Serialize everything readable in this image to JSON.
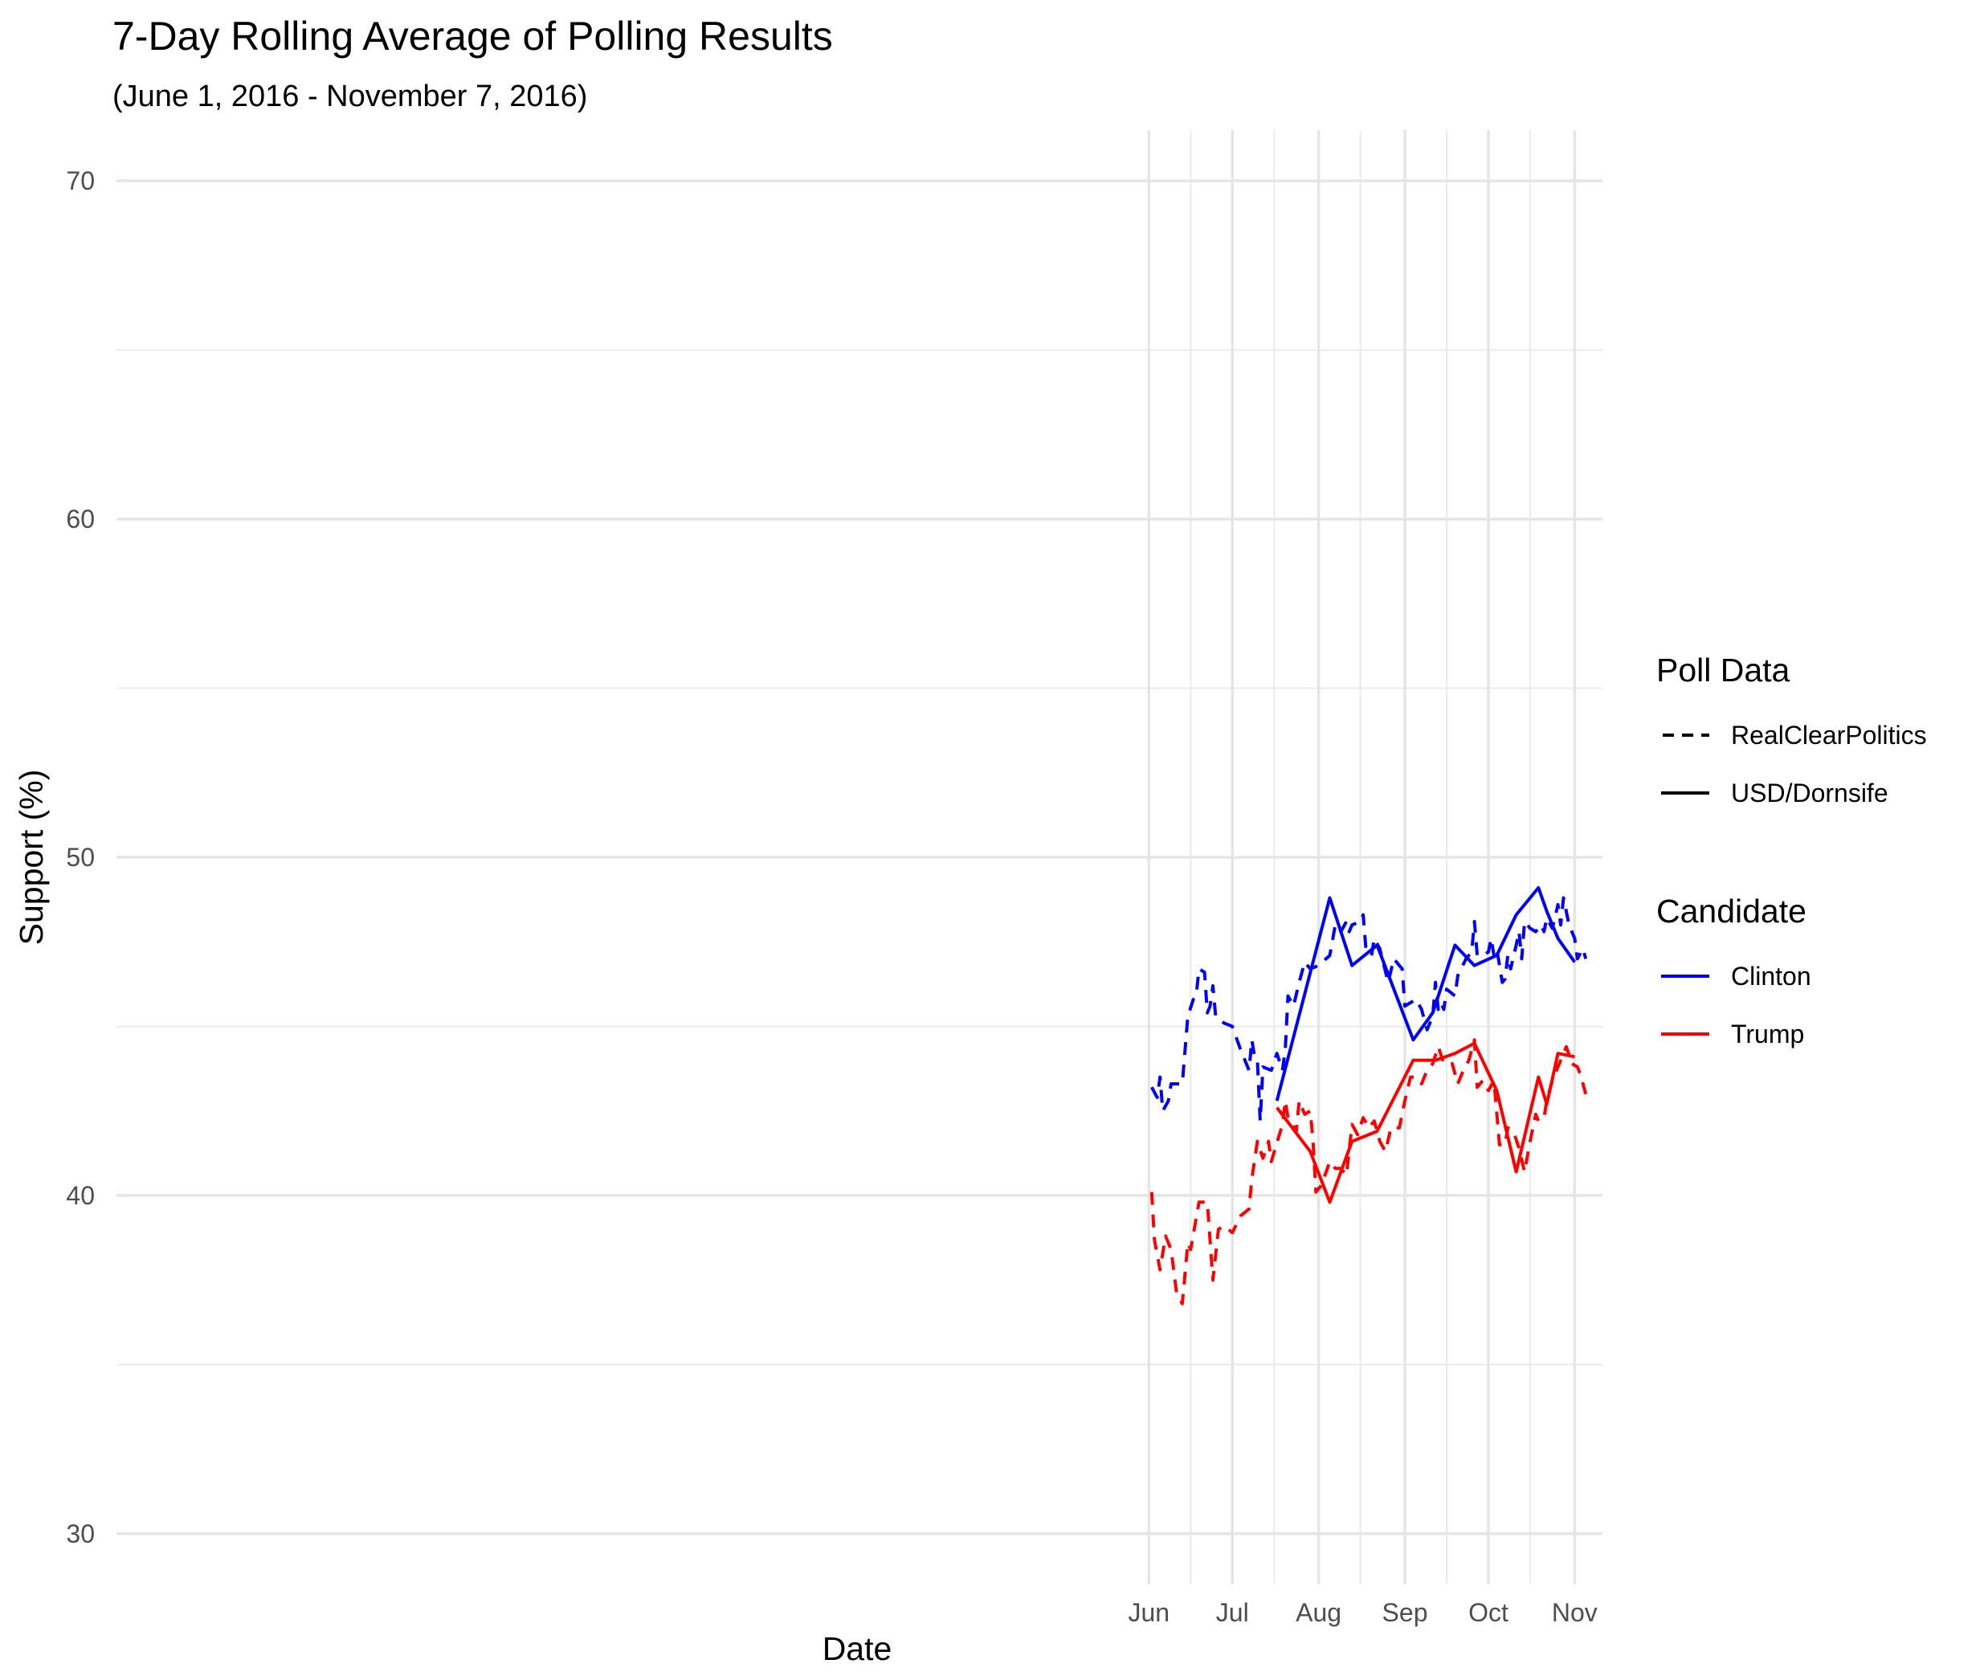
{
  "chart_data": {
    "type": "line",
    "title": "7-Day Rolling Average of Polling Results",
    "subtitle": "(June 1, 2016 - November 7, 2016)",
    "xlabel": "Date",
    "ylabel": "Support (%)",
    "ylim": [
      28.5,
      71.5
    ],
    "y_ticks": [
      30,
      40,
      50,
      60,
      70
    ],
    "x_tick_labels": [
      "Jun",
      "Jul",
      "Aug",
      "Sep",
      "Oct",
      "Nov"
    ],
    "x_tick_dates": [
      "2016-06-01",
      "2016-07-01",
      "2016-08-01",
      "2016-09-01",
      "2016-10-01",
      "2016-11-01"
    ],
    "xlim": [
      "2015-05-27",
      "2016-11-11"
    ],
    "grid": true,
    "legend_position": "right",
    "legends": [
      {
        "title": "Poll Data",
        "items": [
          {
            "label": "RealClearPolitics",
            "linestyle": "dashed"
          },
          {
            "label": "USD/Dornsife",
            "linestyle": "solid"
          }
        ]
      },
      {
        "title": "Candidate",
        "items": [
          {
            "label": "Clinton",
            "color": "#0000ff"
          },
          {
            "label": "Trump",
            "color": "#ff0000"
          }
        ]
      }
    ],
    "series": [
      {
        "candidate": "Clinton",
        "poll": "RealClearPolitics",
        "color": "#0000ff",
        "linestyle": "dashed",
        "points": [
          [
            "2016-06-02",
            43.2
          ],
          [
            "2016-06-04",
            42.9
          ],
          [
            "2016-06-05",
            43.5
          ],
          [
            "2016-06-06",
            42.5
          ],
          [
            "2016-06-08",
            42.8
          ],
          [
            "2016-06-09",
            43.3
          ],
          [
            "2016-06-13",
            43.3
          ],
          [
            "2016-06-15",
            45.3
          ],
          [
            "2016-06-17",
            45.8
          ],
          [
            "2016-06-18",
            45.9
          ],
          [
            "2016-06-19",
            46.7
          ],
          [
            "2016-06-21",
            46.6
          ],
          [
            "2016-06-22",
            45.4
          ],
          [
            "2016-06-23",
            45.6
          ],
          [
            "2016-06-24",
            46.2
          ],
          [
            "2016-06-25",
            45.3
          ],
          [
            "2016-06-28",
            45.1
          ],
          [
            "2016-07-01",
            45.0
          ],
          [
            "2016-07-04",
            44.3
          ],
          [
            "2016-07-06",
            43.9
          ],
          [
            "2016-07-07",
            43.7
          ],
          [
            "2016-07-08",
            44.6
          ],
          [
            "2016-07-09",
            44.1
          ],
          [
            "2016-07-10",
            44.0
          ],
          [
            "2016-07-11",
            42.2
          ],
          [
            "2016-07-12",
            43.8
          ],
          [
            "2016-07-15",
            43.7
          ],
          [
            "2016-07-17",
            44.2
          ],
          [
            "2016-07-19",
            43.7
          ],
          [
            "2016-07-20",
            44.3
          ],
          [
            "2016-07-21",
            45.9
          ],
          [
            "2016-07-23",
            45.6
          ],
          [
            "2016-07-25",
            46.3
          ],
          [
            "2016-07-27",
            46.9
          ],
          [
            "2016-07-29",
            46.7
          ],
          [
            "2016-08-01",
            46.8
          ],
          [
            "2016-08-05",
            47.1
          ],
          [
            "2016-08-07",
            48.0
          ],
          [
            "2016-08-09",
            47.8
          ],
          [
            "2016-08-11",
            48.1
          ],
          [
            "2016-08-12",
            47.8
          ],
          [
            "2016-08-13",
            48.0
          ],
          [
            "2016-08-16",
            48.1
          ],
          [
            "2016-08-17",
            48.3
          ],
          [
            "2016-08-18",
            47.3
          ],
          [
            "2016-08-20",
            47.1
          ],
          [
            "2016-08-21",
            47.6
          ],
          [
            "2016-08-23",
            47.3
          ],
          [
            "2016-08-26",
            46.3
          ],
          [
            "2016-08-28",
            47.0
          ],
          [
            "2016-08-31",
            46.7
          ],
          [
            "2016-09-01",
            45.6
          ],
          [
            "2016-09-05",
            45.8
          ],
          [
            "2016-09-07",
            45.5
          ],
          [
            "2016-09-09",
            44.9
          ],
          [
            "2016-09-11",
            45.3
          ],
          [
            "2016-09-12",
            46.3
          ],
          [
            "2016-09-13",
            45.5
          ],
          [
            "2016-09-14",
            45.7
          ],
          [
            "2016-09-15",
            45.5
          ],
          [
            "2016-09-16",
            46.1
          ],
          [
            "2016-09-19",
            45.9
          ],
          [
            "2016-09-20",
            46.5
          ],
          [
            "2016-09-23",
            47.0
          ],
          [
            "2016-09-25",
            47.2
          ],
          [
            "2016-09-26",
            48.1
          ],
          [
            "2016-09-27",
            47.1
          ],
          [
            "2016-09-29",
            47.1
          ],
          [
            "2016-10-01",
            47.2
          ],
          [
            "2016-10-02",
            47.6
          ],
          [
            "2016-10-03",
            47.1
          ],
          [
            "2016-10-04",
            47.3
          ],
          [
            "2016-10-06",
            46.3
          ],
          [
            "2016-10-07",
            46.4
          ],
          [
            "2016-10-08",
            47.1
          ],
          [
            "2016-10-09",
            46.7
          ],
          [
            "2016-10-11",
            47.4
          ],
          [
            "2016-10-12",
            47.8
          ],
          [
            "2016-10-13",
            47.0
          ],
          [
            "2016-10-14",
            48.1
          ],
          [
            "2016-10-16",
            47.9
          ],
          [
            "2016-10-18",
            47.8
          ],
          [
            "2016-10-20",
            48.0
          ],
          [
            "2016-10-21",
            47.8
          ],
          [
            "2016-10-22",
            48.2
          ],
          [
            "2016-10-24",
            47.9
          ],
          [
            "2016-10-26",
            48.6
          ],
          [
            "2016-10-27",
            48.0
          ],
          [
            "2016-10-28",
            48.8
          ],
          [
            "2016-10-30",
            48.0
          ],
          [
            "2016-11-01",
            47.6
          ],
          [
            "2016-11-02",
            47.0
          ],
          [
            "2016-11-04",
            47.3
          ],
          [
            "2016-11-05",
            47.0
          ]
        ]
      },
      {
        "candidate": "Trump",
        "poll": "RealClearPolitics",
        "color": "#ff0000",
        "linestyle": "dashed",
        "points": [
          [
            "2016-06-02",
            40.1
          ],
          [
            "2016-06-03",
            38.7
          ],
          [
            "2016-06-05",
            37.8
          ],
          [
            "2016-06-07",
            38.8
          ],
          [
            "2016-06-09",
            38.4
          ],
          [
            "2016-06-11",
            37.1
          ],
          [
            "2016-06-13",
            36.8
          ],
          [
            "2016-06-15",
            38.6
          ],
          [
            "2016-06-16",
            38.4
          ],
          [
            "2016-06-19",
            39.8
          ],
          [
            "2016-06-22",
            39.8
          ],
          [
            "2016-06-24",
            37.5
          ],
          [
            "2016-06-26",
            39.0
          ],
          [
            "2016-06-28",
            39.1
          ],
          [
            "2016-07-01",
            38.9
          ],
          [
            "2016-07-04",
            39.4
          ],
          [
            "2016-07-07",
            39.6
          ],
          [
            "2016-07-08",
            40.5
          ],
          [
            "2016-07-10",
            41.6
          ],
          [
            "2016-07-12",
            41.1
          ],
          [
            "2016-07-14",
            41.6
          ],
          [
            "2016-07-15",
            41.0
          ],
          [
            "2016-07-19",
            42.1
          ],
          [
            "2016-07-20",
            42.8
          ],
          [
            "2016-07-21",
            42.3
          ],
          [
            "2016-07-24",
            41.9
          ],
          [
            "2016-07-25",
            42.8
          ],
          [
            "2016-07-27",
            42.4
          ],
          [
            "2016-07-29",
            42.5
          ],
          [
            "2016-07-30",
            41.6
          ],
          [
            "2016-07-31",
            40.1
          ],
          [
            "2016-08-02",
            40.3
          ],
          [
            "2016-08-05",
            41.0
          ],
          [
            "2016-08-07",
            40.8
          ],
          [
            "2016-08-09",
            40.8
          ],
          [
            "2016-08-11",
            40.6
          ],
          [
            "2016-08-13",
            42.1
          ],
          [
            "2016-08-15",
            41.8
          ],
          [
            "2016-08-17",
            42.3
          ],
          [
            "2016-08-19",
            42.0
          ],
          [
            "2016-08-21",
            42.2
          ],
          [
            "2016-08-23",
            41.6
          ],
          [
            "2016-08-25",
            41.3
          ],
          [
            "2016-08-27",
            42.0
          ],
          [
            "2016-08-30",
            42.0
          ],
          [
            "2016-09-01",
            42.8
          ],
          [
            "2016-09-03",
            43.5
          ],
          [
            "2016-09-05",
            43.5
          ],
          [
            "2016-09-07",
            43.3
          ],
          [
            "2016-09-09",
            43.7
          ],
          [
            "2016-09-11",
            43.9
          ],
          [
            "2016-09-13",
            44.4
          ],
          [
            "2016-09-15",
            43.9
          ],
          [
            "2016-09-18",
            43.9
          ],
          [
            "2016-09-20",
            43.3
          ],
          [
            "2016-09-22",
            43.7
          ],
          [
            "2016-09-24",
            44.0
          ],
          [
            "2016-09-26",
            44.6
          ],
          [
            "2016-09-27",
            43.2
          ],
          [
            "2016-09-29",
            43.4
          ],
          [
            "2016-10-01",
            43.1
          ],
          [
            "2016-10-03",
            43.4
          ],
          [
            "2016-10-05",
            41.5
          ],
          [
            "2016-10-07",
            41.5
          ],
          [
            "2016-10-08",
            42.0
          ],
          [
            "2016-10-10",
            41.9
          ],
          [
            "2016-10-12",
            41.4
          ],
          [
            "2016-10-14",
            40.7
          ],
          [
            "2016-10-16",
            41.6
          ],
          [
            "2016-10-18",
            42.4
          ],
          [
            "2016-10-19",
            42.2
          ],
          [
            "2016-10-21",
            42.3
          ],
          [
            "2016-10-22",
            42.8
          ],
          [
            "2016-10-24",
            43.4
          ],
          [
            "2016-10-26",
            43.8
          ],
          [
            "2016-10-28",
            44.2
          ],
          [
            "2016-10-29",
            44.4
          ],
          [
            "2016-10-31",
            43.9
          ],
          [
            "2016-11-02",
            43.8
          ],
          [
            "2016-11-03",
            43.6
          ],
          [
            "2016-11-05",
            43.0
          ]
        ]
      },
      {
        "candidate": "Clinton",
        "poll": "USD/Dornsife",
        "color": "#0000ff",
        "linestyle": "solid",
        "points": [
          [
            "2016-07-17",
            42.8
          ],
          [
            "2016-08-05",
            48.8
          ],
          [
            "2016-08-13",
            46.8
          ],
          [
            "2016-08-22",
            47.4
          ],
          [
            "2016-09-04",
            44.6
          ],
          [
            "2016-09-11",
            45.4
          ],
          [
            "2016-09-19",
            47.4
          ],
          [
            "2016-09-26",
            46.8
          ],
          [
            "2016-10-04",
            47.1
          ],
          [
            "2016-10-11",
            48.3
          ],
          [
            "2016-10-19",
            49.1
          ],
          [
            "2016-10-22",
            48.4
          ],
          [
            "2016-10-26",
            47.6
          ],
          [
            "2016-11-01",
            46.9
          ]
        ]
      },
      {
        "candidate": "Trump",
        "poll": "USD/Dornsife",
        "color": "#ff0000",
        "linestyle": "solid",
        "points": [
          [
            "2016-07-17",
            42.6
          ],
          [
            "2016-07-29",
            41.3
          ],
          [
            "2016-08-05",
            39.8
          ],
          [
            "2016-08-13",
            41.6
          ],
          [
            "2016-08-22",
            41.9
          ],
          [
            "2016-09-04",
            44.0
          ],
          [
            "2016-09-12",
            44.0
          ],
          [
            "2016-09-19",
            44.2
          ],
          [
            "2016-09-26",
            44.5
          ],
          [
            "2016-10-04",
            43.1
          ],
          [
            "2016-10-11",
            40.7
          ],
          [
            "2016-10-19",
            43.5
          ],
          [
            "2016-10-22",
            42.7
          ],
          [
            "2016-10-26",
            44.2
          ],
          [
            "2016-11-01",
            44.1
          ]
        ]
      }
    ]
  }
}
